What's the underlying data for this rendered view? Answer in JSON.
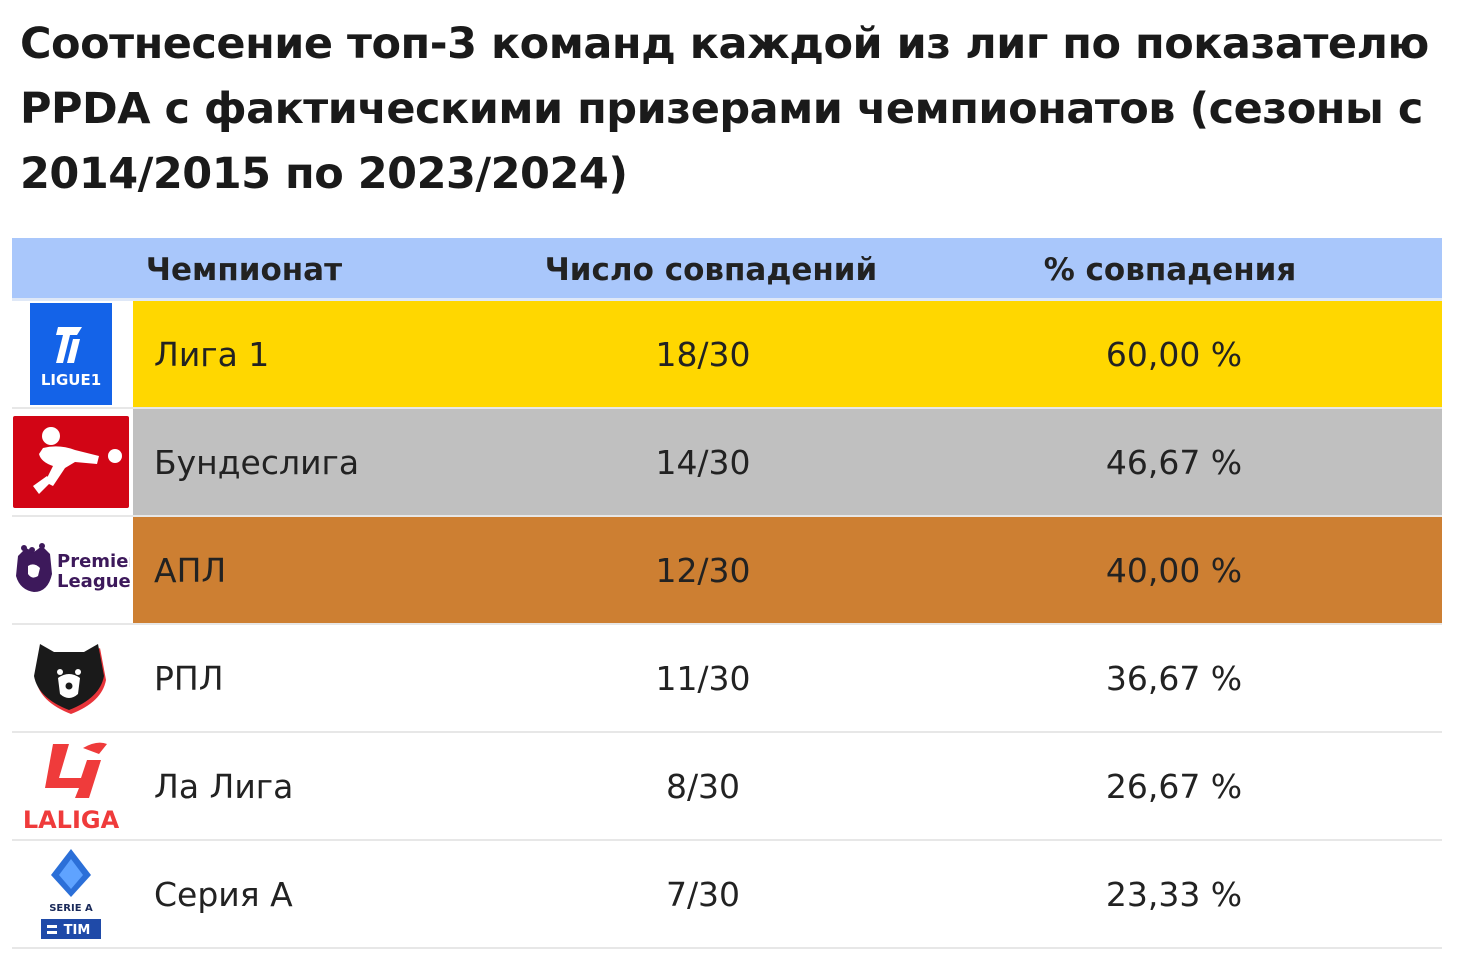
{
  "title": "Соотнесение топ-3 команд каждой из лиг по показателю PPDA с фактическими призерами чемпионатов (сезоны с 2014/2015 по 2023/2024)",
  "chart_data": {
    "type": "table",
    "title": "Соотнесение топ-3 команд каждой из лиг по показателю PPDA с фактическими призерами чемпионатов (сезоны с 2014/2015 по 2023/2024)",
    "columns": [
      "Чемпионат",
      "Число совпадений",
      "% совпадения"
    ],
    "rows": [
      {
        "league": "Лига 1",
        "matches": "18/30",
        "matches_value": 18,
        "total": 30,
        "percent": "60,00 %",
        "percent_value": 60.0,
        "highlight": "#ffd700",
        "logo": "ligue1-logo"
      },
      {
        "league": "Бундеслига",
        "matches": "14/30",
        "matches_value": 14,
        "total": 30,
        "percent": "46,67 %",
        "percent_value": 46.67,
        "highlight": "#c0c0c0",
        "logo": "bundesliga-logo"
      },
      {
        "league": "АПЛ",
        "matches": "12/30",
        "matches_value": 12,
        "total": 30,
        "percent": "40,00 %",
        "percent_value": 40.0,
        "highlight": "#cd7f32",
        "logo": "premier-league-logo"
      },
      {
        "league": "РПЛ",
        "matches": "11/30",
        "matches_value": 11,
        "total": 30,
        "percent": "36,67 %",
        "percent_value": 36.67,
        "highlight": "#ffffff",
        "logo": "rpl-logo"
      },
      {
        "league": "Ла Лига",
        "matches": "8/30",
        "matches_value": 8,
        "total": 30,
        "percent": "26,67 %",
        "percent_value": 26.67,
        "highlight": "#ffffff",
        "logo": "laliga-logo"
      },
      {
        "league": "Серия А",
        "matches": "7/30",
        "matches_value": 7,
        "total": 30,
        "percent": "23,33 %",
        "percent_value": 23.33,
        "highlight": "#ffffff",
        "logo": "serie-a-logo"
      }
    ]
  },
  "colors": {
    "header_bg": "#a9c7fb",
    "gold": "#ffd700",
    "silver": "#c0c0c0",
    "bronze": "#cd7f32"
  }
}
